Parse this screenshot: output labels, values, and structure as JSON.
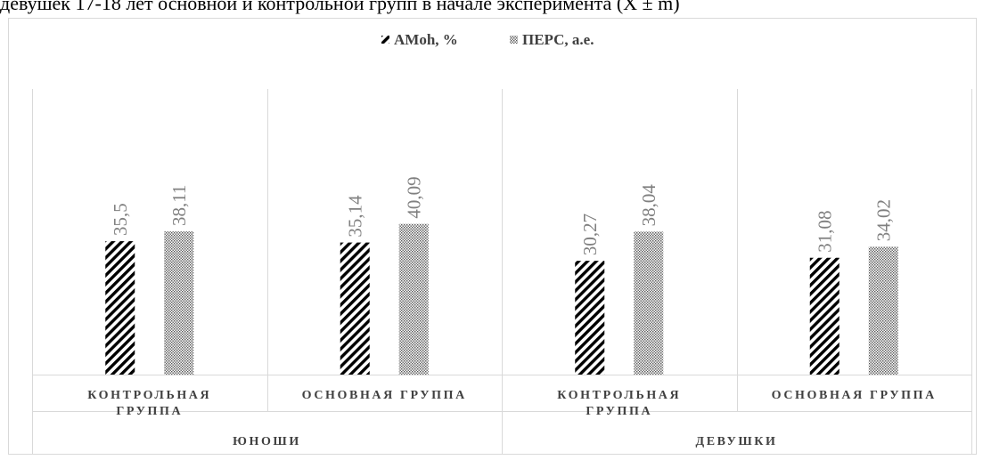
{
  "page_title": "девушек 17-18 лет основной и контрольной групп в начале эксперимента (X̄ ± m)",
  "chart_data": {
    "type": "bar",
    "series": [
      {
        "name": "AMoh, %",
        "values": [
          35.5,
          35.14,
          30.27,
          31.08
        ],
        "labels": [
          "35,5",
          "35,14",
          "30,27",
          "31,08"
        ],
        "pattern": "diagonal-hatch",
        "color": "#000000"
      },
      {
        "name": "ПЕРС, а.е.",
        "values": [
          38.11,
          40.09,
          38.04,
          34.02
        ],
        "labels": [
          "38,11",
          "40,09",
          "38,04",
          "34,02"
        ],
        "pattern": "dots",
        "color": "#808080"
      }
    ],
    "categories": [
      [
        "КОНТРОЛЬНАЯ",
        "ГРУППА"
      ],
      [
        "ОСНОВНАЯ ГРУППА"
      ],
      [
        "КОНТРОЛЬНАЯ",
        "ГРУППА"
      ],
      [
        "ОСНОВНАЯ ГРУППА"
      ]
    ],
    "groups": [
      {
        "label": "ЮНОШИ",
        "span": [
          0,
          1
        ]
      },
      {
        "label": "ДЕВУШКИ",
        "span": [
          2,
          3
        ]
      }
    ],
    "ylim": [
      0,
      76
    ],
    "grid": false,
    "legend": "top-center",
    "data_label_color": "#808080"
  }
}
